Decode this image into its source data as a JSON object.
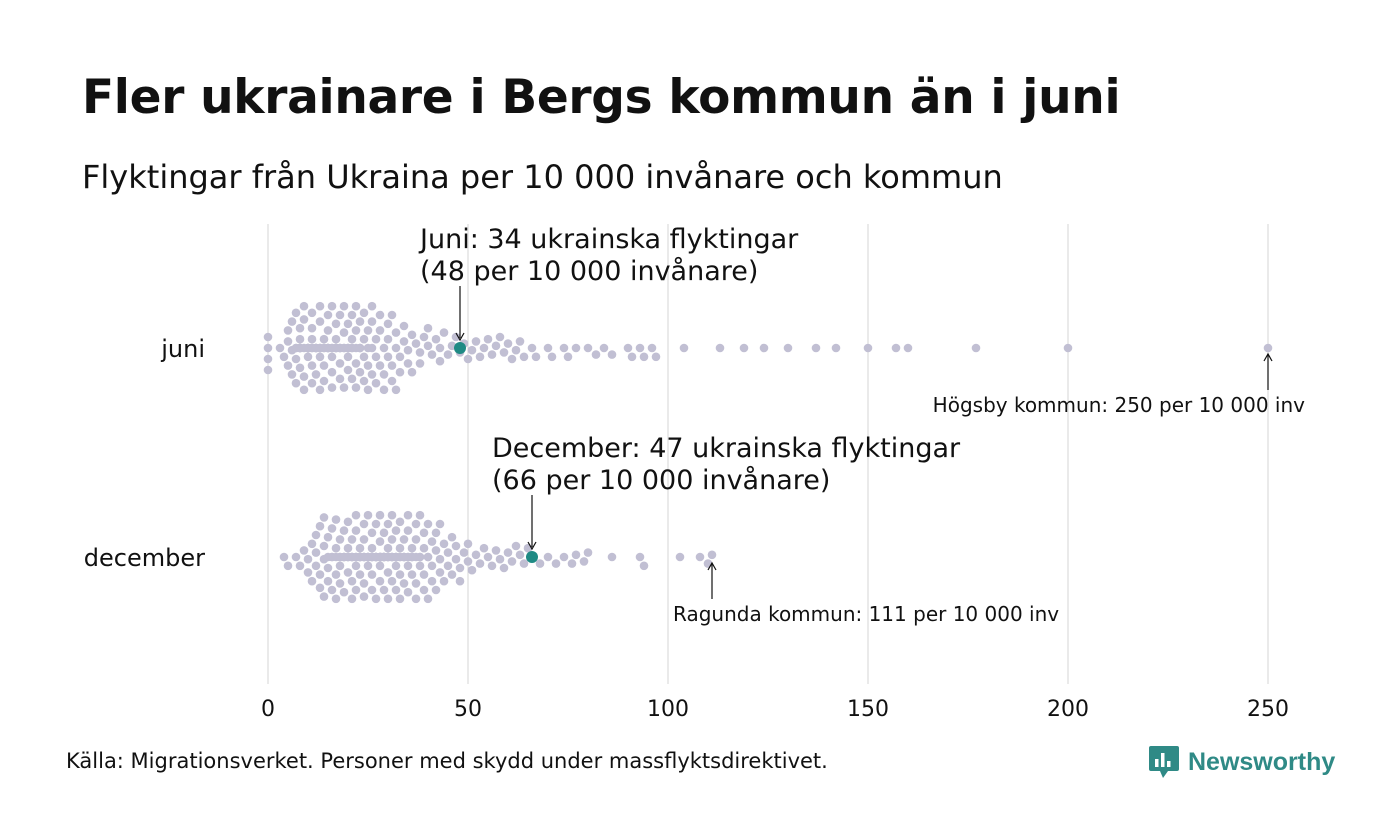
{
  "colors": {
    "dot": "#c1bfd3",
    "highlight": "#1f8a84",
    "grid": "#d4d4d4",
    "text": "#111111",
    "brand": "#2f8a86"
  },
  "chart_data": {
    "type": "scatter",
    "title": "Fler ukrainare i Bergs kommun än i juni",
    "subtitle": "Flyktingar från Ukraina per 10 000 invånare och kommun",
    "xlim": [
      0,
      250
    ],
    "x_ticks": [
      "0",
      "50",
      "100",
      "150",
      "200",
      "250"
    ],
    "categories": [
      "juni",
      "december"
    ],
    "grid": true,
    "series": [
      {
        "name": "juni",
        "values": [
          0,
          0,
          0,
          0,
          3,
          4,
          5,
          5,
          5,
          6,
          6,
          6,
          7,
          7,
          7,
          7,
          7,
          8,
          8,
          8,
          8,
          8,
          8,
          8,
          8,
          9,
          9,
          9,
          9,
          9,
          10,
          10,
          10,
          10,
          10,
          10,
          11,
          11,
          11,
          11,
          11,
          11,
          11,
          12,
          12,
          12,
          12,
          12,
          12,
          13,
          13,
          13,
          13,
          13,
          13,
          13,
          14,
          14,
          14,
          14,
          14,
          15,
          15,
          15,
          15,
          15,
          15,
          15,
          16,
          16,
          16,
          16,
          16,
          16,
          17,
          17,
          17,
          17,
          17,
          17,
          18,
          18,
          18,
          18,
          18,
          18,
          19,
          19,
          19,
          19,
          19,
          20,
          20,
          20,
          20,
          20,
          20,
          21,
          21,
          21,
          21,
          21,
          22,
          22,
          22,
          22,
          22,
          23,
          23,
          23,
          23,
          23,
          24,
          24,
          24,
          24,
          25,
          25,
          25,
          25,
          26,
          26,
          26,
          26,
          27,
          27,
          27,
          28,
          28,
          28,
          29,
          29,
          29,
          30,
          30,
          30,
          31,
          31,
          31,
          32,
          32,
          32,
          33,
          33,
          34,
          34,
          35,
          35,
          36,
          36,
          37,
          38,
          38,
          39,
          40,
          40,
          41,
          42,
          43,
          43,
          44,
          45,
          46,
          47,
          48,
          49,
          50,
          51,
          52,
          53,
          54,
          55,
          56,
          57,
          58,
          59,
          60,
          61,
          62,
          63,
          64,
          66,
          67,
          70,
          71,
          74,
          75,
          77,
          80,
          82,
          84,
          86,
          90,
          91,
          93,
          94,
          96,
          97,
          104,
          113,
          119,
          124,
          130,
          137,
          142,
          150,
          157,
          160,
          177,
          200,
          250
        ],
        "highlight": {
          "value": 48,
          "label": [
            "Juni: 34 ukrainska flyktingar",
            "(48 per 10 000 invånare)"
          ]
        },
        "max_annotation": {
          "value": 250,
          "label": "Högsby kommun: 250 per 10 000 inv"
        }
      },
      {
        "name": "december",
        "values": [
          4,
          5,
          7,
          8,
          9,
          10,
          10,
          11,
          11,
          12,
          12,
          12,
          13,
          13,
          13,
          14,
          14,
          14,
          14,
          15,
          15,
          15,
          15,
          16,
          16,
          16,
          16,
          17,
          17,
          17,
          17,
          17,
          18,
          18,
          18,
          18,
          18,
          19,
          19,
          19,
          19,
          19,
          19,
          20,
          20,
          20,
          20,
          20,
          20,
          21,
          21,
          21,
          21,
          21,
          21,
          21,
          22,
          22,
          22,
          22,
          22,
          22,
          22,
          23,
          23,
          23,
          23,
          23,
          23,
          23,
          24,
          24,
          24,
          24,
          24,
          24,
          24,
          24,
          25,
          25,
          25,
          25,
          25,
          25,
          25,
          25,
          26,
          26,
          26,
          26,
          26,
          26,
          26,
          26,
          27,
          27,
          27,
          27,
          27,
          27,
          27,
          27,
          27,
          28,
          28,
          28,
          28,
          28,
          28,
          28,
          28,
          28,
          29,
          29,
          29,
          29,
          29,
          29,
          29,
          29,
          30,
          30,
          30,
          30,
          30,
          30,
          30,
          30,
          31,
          31,
          31,
          31,
          31,
          31,
          31,
          32,
          32,
          32,
          32,
          32,
          32,
          32,
          33,
          33,
          33,
          33,
          33,
          33,
          34,
          34,
          34,
          34,
          34,
          34,
          35,
          35,
          35,
          35,
          35,
          35,
          36,
          36,
          36,
          36,
          36,
          37,
          37,
          37,
          37,
          37,
          38,
          38,
          38,
          38,
          39,
          39,
          39,
          39,
          40,
          40,
          40,
          40,
          41,
          41,
          41,
          42,
          42,
          42,
          43,
          43,
          43,
          44,
          44,
          45,
          45,
          46,
          46,
          47,
          47,
          48,
          48,
          49,
          50,
          50,
          51,
          52,
          53,
          54,
          55,
          56,
          57,
          58,
          59,
          60,
          61,
          62,
          63,
          64,
          65,
          66,
          68,
          70,
          72,
          74,
          76,
          77,
          79,
          80,
          86,
          93,
          94,
          103,
          108,
          110,
          111
        ],
        "highlight": {
          "value": 66,
          "label": [
            "December: 47 ukrainska flyktingar",
            "(66 per 10 000 invånare)"
          ]
        },
        "max_annotation": {
          "value": 111,
          "label": "Ragunda kommun: 111 per 10 000 inv"
        }
      }
    ]
  },
  "footer": {
    "source": "Källa: Migrationsverket. Personer med skydd under massflyktsdirektivet.",
    "brand": "Newsworthy"
  }
}
